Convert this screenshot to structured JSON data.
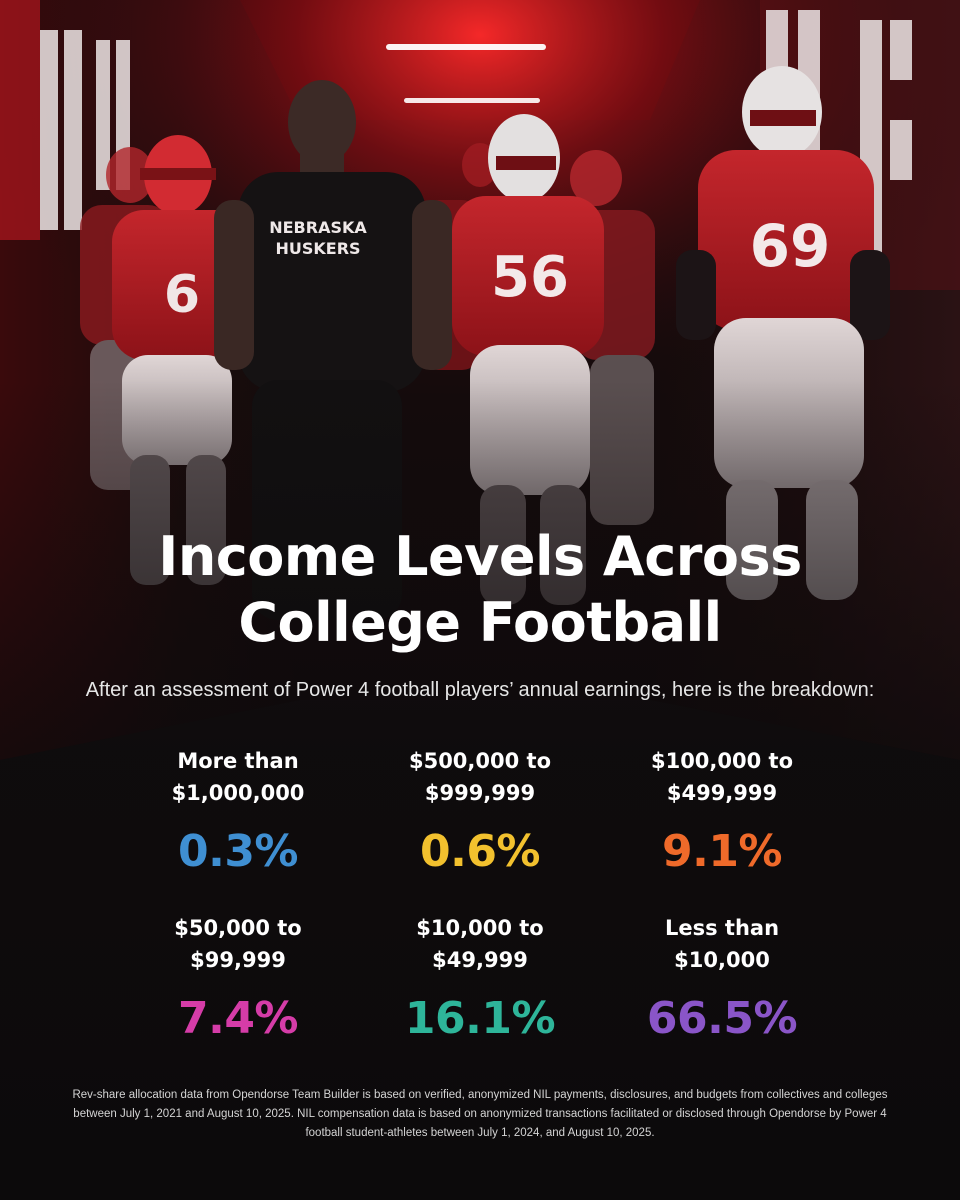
{
  "title": {
    "line1": "Income Levels Across",
    "line2": "College Football"
  },
  "subtitle": "After an assessment of Power 4 football players’ annual earnings, here is the breakdown:",
  "stats": [
    {
      "line1": "More than",
      "line2": "$1,000,000",
      "value": "0.3%",
      "color": "#3f8fd2"
    },
    {
      "line1": "$500,000 to",
      "line2": "$999,999",
      "value": "0.6%",
      "color": "#f2c12e"
    },
    {
      "line1": "$100,000 to",
      "line2": "$499,999",
      "value": "9.1%",
      "color": "#ef6a2a"
    },
    {
      "line1": "$50,000 to",
      "line2": "$99,999",
      "value": "7.4%",
      "color": "#d53ca8"
    },
    {
      "line1": "$10,000 to",
      "line2": "$49,999",
      "value": "16.1%",
      "color": "#2eb59a"
    },
    {
      "line1": "Less than",
      "line2": "$10,000",
      "value": "66.5%",
      "color": "#8a55c8"
    }
  ],
  "disclaimer": "Rev-share allocation data from Opendorse Team Builder is based on verified, anonymized NIL payments, disclosures, and budgets from collectives and colleges between July 1, 2021 and August 10, 2025. NIL compensation data is based on anonymized transactions facilitated or disclosed through Opendorse by Power 4 football student-athletes between July 1, 2024, and August 10, 2025.",
  "photo": {
    "shirt_line1": "NEBRASKA",
    "shirt_line2": "HUSKERS",
    "jersey_numbers": [
      "6",
      "56",
      "69"
    ],
    "accent_color": "#c8141e"
  }
}
